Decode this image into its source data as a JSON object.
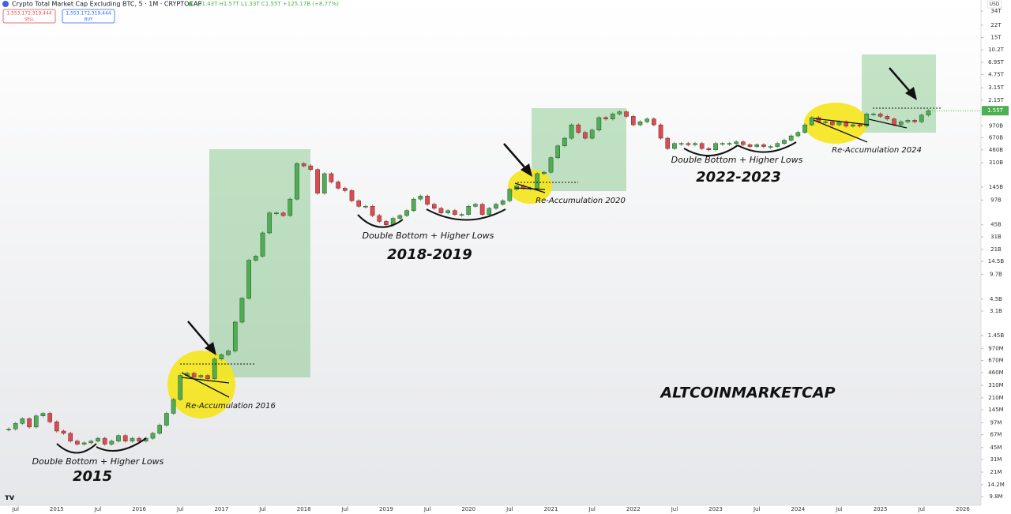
{
  "chart_data": {
    "type": "candlestick",
    "title": "Crypto Total Market Cap Excluding BTC, 5 · 1M · CRYPTOCAP",
    "legend_ohlc": "O1.43T H1.57T L1.33T C1.55T +125.17B (+8.77%)",
    "sell_price": "1,553,172,319,444",
    "sell_label": "SELL",
    "buy_price": "1,553,172,319,444",
    "buy_label": "BUY",
    "currency": "USD",
    "up_color": "#4caf50",
    "down_color": "#e04a4f",
    "log_scale": true,
    "ylim": [
      7500000.0,
      48000000000000.0
    ],
    "yticks": [
      {
        "value": 34000000000000.0,
        "label": "34T"
      },
      {
        "value": 22000000000000.0,
        "label": "22T"
      },
      {
        "value": 15000000000000.0,
        "label": "15T"
      },
      {
        "value": 10200000000000.0,
        "label": "10.2T"
      },
      {
        "value": 6950000000000.0,
        "label": "6.95T"
      },
      {
        "value": 4750000000000.0,
        "label": "4.75T"
      },
      {
        "value": 3150000000000.0,
        "label": "3.15T"
      },
      {
        "value": 2150000000000.0,
        "label": "2.15T"
      },
      {
        "value": 970000000000.0,
        "label": "970B"
      },
      {
        "value": 670000000000.0,
        "label": "670B"
      },
      {
        "value": 460000000000.0,
        "label": "460B"
      },
      {
        "value": 310000000000.0,
        "label": "310B"
      },
      {
        "value": 145000000000.0,
        "label": "145B"
      },
      {
        "value": 97000000000.0,
        "label": "97B"
      },
      {
        "value": 45000000000.0,
        "label": "45B"
      },
      {
        "value": 31000000000.0,
        "label": "31B"
      },
      {
        "value": 21000000000.0,
        "label": "21B"
      },
      {
        "value": 14500000000.0,
        "label": "14.5B"
      },
      {
        "value": 9700000000.0,
        "label": "9.7B"
      },
      {
        "value": 4500000000.0,
        "label": "4.5B"
      },
      {
        "value": 3100000000.0,
        "label": "3.1B"
      },
      {
        "value": 1450000000.0,
        "label": "1.45B"
      },
      {
        "value": 970000000.0,
        "label": "970M"
      },
      {
        "value": 670000000.0,
        "label": "670M"
      },
      {
        "value": 460000000.0,
        "label": "460M"
      },
      {
        "value": 310000000.0,
        "label": "310M"
      },
      {
        "value": 210000000.0,
        "label": "210M"
      },
      {
        "value": 145000000.0,
        "label": "145M"
      },
      {
        "value": 97000000.0,
        "label": "97M"
      },
      {
        "value": 67000000.0,
        "label": "67M"
      },
      {
        "value": 45000000.0,
        "label": "45M"
      },
      {
        "value": 31000000.0,
        "label": "31M"
      },
      {
        "value": 21000000.0,
        "label": "21M"
      },
      {
        "value": 14200000.0,
        "label": "14.2M"
      },
      {
        "value": 9800000.0,
        "label": "9.8M"
      }
    ],
    "last_price": {
      "value": 1550000000000.0,
      "label": "1.55T"
    },
    "categories": [
      null,
      "Jul",
      null,
      null,
      null,
      null,
      null,
      "2015",
      null,
      null,
      null,
      null,
      null,
      "Jul",
      null,
      null,
      null,
      null,
      null,
      "2016",
      null,
      null,
      null,
      null,
      null,
      "Jul",
      null,
      null,
      null,
      null,
      null,
      "2017",
      null,
      null,
      null,
      null,
      null,
      "Jul",
      null,
      null,
      null,
      null,
      null,
      "2018",
      null,
      null,
      null,
      null,
      null,
      "Jul",
      null,
      null,
      null,
      null,
      null,
      "2019",
      null,
      null,
      null,
      null,
      null,
      "Jul",
      null,
      null,
      null,
      null,
      null,
      "2020",
      null,
      null,
      null,
      null,
      null,
      "Jul",
      null,
      null,
      null,
      null,
      null,
      "2021",
      null,
      null,
      null,
      null,
      null,
      "Jul",
      null,
      null,
      null,
      null,
      null,
      "2022",
      null,
      null,
      null,
      null,
      null,
      "Jul",
      null,
      null,
      null,
      null,
      null,
      "2023",
      null,
      null,
      null,
      null,
      null,
      "Jul",
      null,
      null,
      null,
      null,
      null,
      "2024",
      null,
      null,
      null,
      null,
      null,
      "Jul",
      null,
      null,
      null,
      null,
      null,
      "2025",
      null,
      null,
      null,
      null,
      null,
      "Jul",
      null,
      null,
      null,
      null,
      null,
      "2026"
    ],
    "series": [
      {
        "name": "Close",
        "values": [
          80000000.0,
          95000000.0,
          110000000.0,
          85000000.0,
          120000000.0,
          130000000.0,
          100000000.0,
          75000000.0,
          70000000.0,
          55000000.0,
          50000000.0,
          52000000.0,
          55000000.0,
          60000000.0,
          50000000.0,
          55000000.0,
          65000000.0,
          55000000.0,
          60000000.0,
          55000000.0,
          60000000.0,
          70000000.0,
          90000000.0,
          130000000.0,
          200000000.0,
          420000000.0,
          450000000.0,
          400000000.0,
          420000000.0,
          380000000.0,
          700000000.0,
          800000000.0,
          900000000.0,
          2200000000.0,
          4600000000.0,
          15000000000.0,
          17000000000.0,
          35000000000.0,
          65000000000.0,
          65000000000.0,
          60000000000.0,
          100000000000.0,
          300000000000.0,
          280000000000.0,
          250000000000.0,
          120000000000.0,
          220000000000.0,
          170000000000.0,
          140000000000.0,
          130000000000.0,
          95000000000.0,
          80000000000.0,
          80000000000.0,
          60000000000.0,
          50000000000.0,
          45000000000.0,
          55000000000.0,
          60000000000.0,
          70000000000.0,
          100000000000.0,
          110000000000.0,
          85000000000.0,
          75000000000.0,
          65000000000.0,
          70000000000.0,
          62000000000.0,
          62000000000.0,
          80000000000.0,
          85000000000.0,
          62000000000.0,
          75000000000.0,
          85000000000.0,
          95000000000.0,
          135000000000.0,
          150000000000.0,
          140000000000.0,
          140000000000.0,
          220000000000.0,
          230000000000.0,
          360000000000.0,
          520000000000.0,
          660000000000.0,
          1000000000000.0,
          790000000000.0,
          660000000000.0,
          850000000000.0,
          1250000000000.0,
          1200000000000.0,
          1400000000000.0,
          1500000000000.0,
          1300000000000.0,
          1000000000000.0,
          1100000000000.0,
          1200000000000.0,
          1000000000000.0,
          660000000000.0,
          480000000000.0,
          560000000000.0,
          560000000000.0,
          540000000000.0,
          560000000000.0,
          480000000000.0,
          460000000000.0,
          560000000000.0,
          560000000000.0,
          560000000000.0,
          590000000000.0,
          540000000000.0,
          510000000000.0,
          540000000000.0,
          510000000000.0,
          510000000000.0,
          560000000000.0,
          620000000000.0,
          710000000000.0,
          790000000000.0,
          1000000000000.0,
          1250000000000.0,
          1100000000000.0,
          1100000000000.0,
          1000000000000.0,
          1100000000000.0,
          960000000000.0,
          1000000000000.0,
          960000000000.0,
          1400000000000.0,
          1400000000000.0,
          1300000000000.0,
          1200000000000.0,
          1000000000000.0,
          1100000000000.0,
          1150000000000.0,
          1100000000000.0,
          1350000000000.0,
          1550000000000.0,
          null,
          null,
          null,
          null,
          null
        ]
      }
    ],
    "annotations": [
      "Double Bottom + Higher Lows",
      "2015",
      "Double Bottom + Higher Lows",
      "2018-2019",
      "Re-Accumulation 2016",
      "Re-Accumulation 2020",
      "Double Bottom + Higher Lows",
      "2022-2023",
      "Re-Accumulation 2024",
      "ALTCOINMARKETCAP"
    ]
  }
}
